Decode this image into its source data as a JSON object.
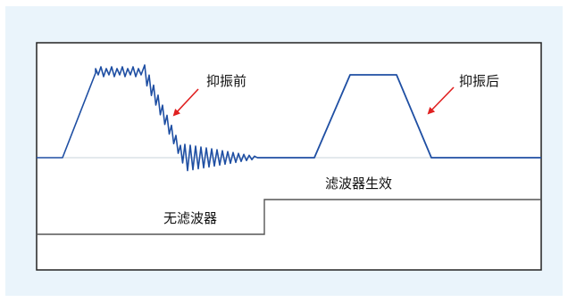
{
  "labels": {
    "before_suppression": "抑振前",
    "after_suppression": "抑振后",
    "filter_active": "滤波器生效",
    "no_filter": "无滤波器"
  },
  "colors": {
    "background": "#eaf4fb",
    "plot_area": "#ffffff",
    "frame": "#222222",
    "waveform": "#1f4fa3",
    "baseline": "#c9d3db",
    "arrow": "#e02020",
    "step_signal": "#555555"
  }
}
